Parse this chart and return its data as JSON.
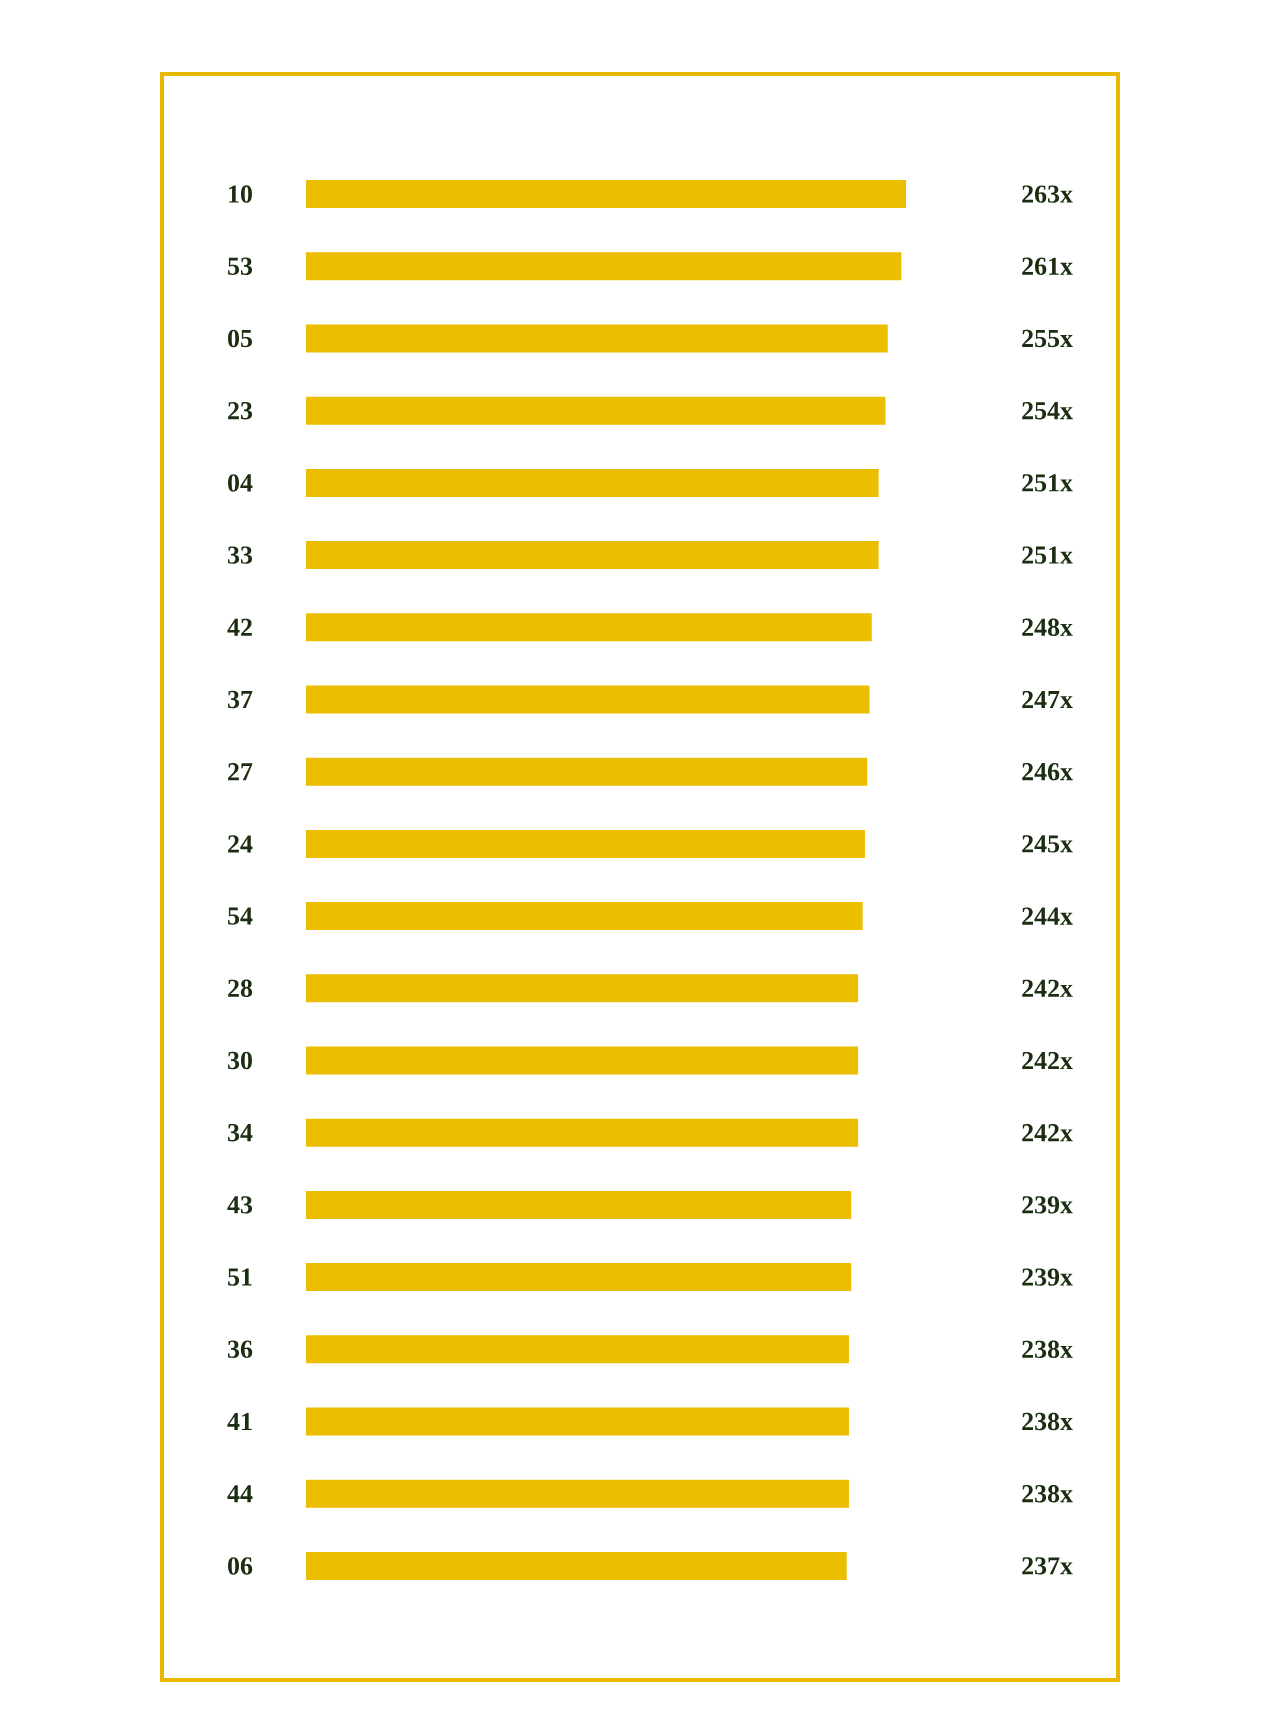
{
  "chart_data": {
    "type": "bar",
    "orientation": "horizontal",
    "categories": [
      "10",
      "53",
      "05",
      "23",
      "04",
      "33",
      "42",
      "37",
      "27",
      "24",
      "54",
      "28",
      "30",
      "34",
      "43",
      "51",
      "36",
      "41",
      "44",
      "06"
    ],
    "values": [
      263,
      261,
      255,
      254,
      251,
      251,
      248,
      247,
      246,
      245,
      244,
      242,
      242,
      242,
      239,
      239,
      238,
      238,
      238,
      237
    ],
    "value_labels": [
      "263x",
      "261x",
      "255x",
      "254x",
      "251x",
      "251x",
      "248x",
      "247x",
      "246x",
      "245x",
      "244x",
      "242x",
      "242x",
      "242x",
      "239x",
      "239x",
      "238x",
      "238x",
      "238x",
      "237x"
    ],
    "color": "#ecbe00"
  }
}
